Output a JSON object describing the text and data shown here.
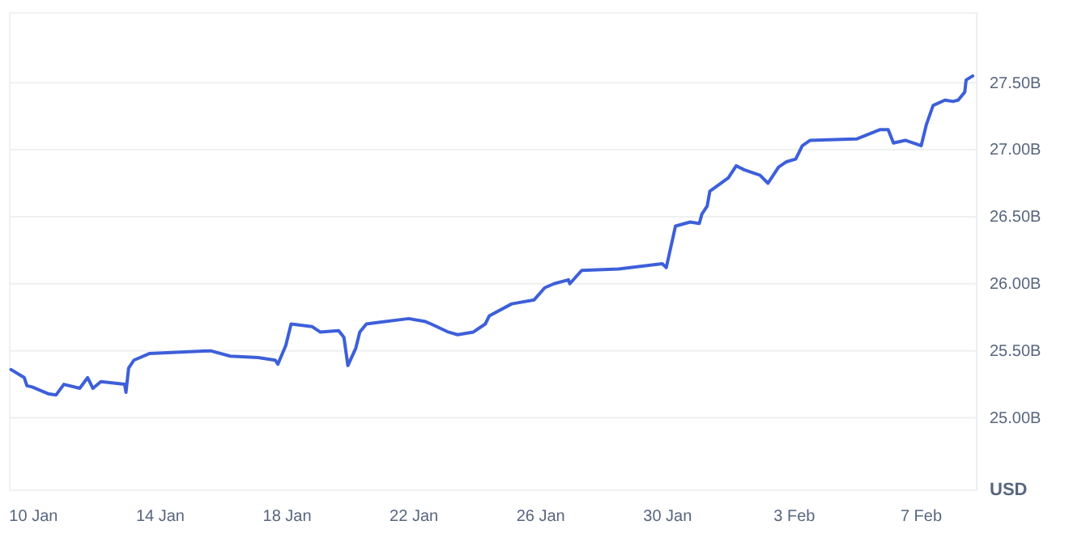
{
  "chart_data": {
    "type": "line",
    "ylabel": "USD",
    "grid": "y",
    "tick_labels": "xy",
    "xlim": [
      "--01-09T06:00",
      "--02-08T18:00"
    ],
    "xticks": [
      {
        "value": "--01-10",
        "label": "10 Jan"
      },
      {
        "value": "--01-14",
        "label": "14 Jan"
      },
      {
        "value": "--01-18",
        "label": "18 Jan"
      },
      {
        "value": "--01-22",
        "label": "22 Jan"
      },
      {
        "value": "--01-26",
        "label": "26 Jan"
      },
      {
        "value": "--01-30",
        "label": "30 Jan"
      },
      {
        "value": "--02-03",
        "label": "3 Feb"
      },
      {
        "value": "--02-07",
        "label": "7 Feb"
      }
    ],
    "ylim": [
      24.46,
      28.02
    ],
    "yticks": [
      {
        "value": 25,
        "label": "25.00B"
      },
      {
        "value": 25.5,
        "label": "25.50B"
      },
      {
        "value": 26,
        "label": "26.00B"
      },
      {
        "value": 26.5,
        "label": "26.50B"
      },
      {
        "value": 27,
        "label": "27.00B"
      },
      {
        "value": 27.5,
        "label": "27.50B"
      }
    ],
    "series": [
      {
        "color": "#3d5fd9",
        "x": [
          "--01-09T07:00",
          "--01-09T17:00",
          "--01-09T19:00",
          "--01-09T23:00",
          "--01-10T11:00",
          "--01-10T17:00",
          "--01-10T23:00",
          "--01-11T11:00",
          "--01-11T17:00",
          "--01-11T21:00",
          "--01-12T03:00",
          "--01-12T21:00",
          "--01-12T22:00",
          "--01-13T00:00",
          "--01-13T04:00",
          "--01-13T16:00",
          "--01-15T14:00",
          "--01-16T05:00",
          "--01-17T02:00",
          "--01-17T15:00",
          "--01-17T17:00",
          "--01-17T23:00",
          "--01-18T03:00",
          "--01-18T19:00",
          "--01-19T01:00",
          "--01-19T15:00",
          "--01-19T19:00",
          "--01-19T22:00",
          "--01-20T04:00",
          "--01-20T07:00",
          "--01-20T12:00",
          "--01-20T20:00",
          "--01-21T20:00",
          "--01-22T08:00",
          "--01-22T13:00",
          "--01-23T02:00",
          "--01-23T09:00",
          "--01-23T21:00",
          "--01-24T06:00",
          "--01-24T09:00",
          "--01-25T02:00",
          "--01-25T19:00",
          "--01-26T03:00",
          "--01-26T10:00",
          "--01-26T21:00",
          "--01-26T22:00",
          "--01-27T07:00",
          "--01-28T11:00",
          "--01-29T20:00",
          "--01-29T23:00",
          "--01-30T06:00",
          "--01-30T17:00",
          "--01-31T00:00",
          "--01-31T02:00",
          "--01-31T06:00",
          "--01-31T08:00",
          "--01-31T22:00",
          "--02-01T04:00",
          "--02-01T10:00",
          "--02-01T22:00",
          "--02-02T04:00",
          "--02-02T12:00",
          "--02-02T18:00",
          "--02-03T01:00",
          "--02-03T06:00",
          "--02-03T12:00",
          "--02-04T23:00",
          "--02-05T17:00",
          "--02-05T23:00",
          "--02-06T03:00",
          "--02-06T12:00",
          "--02-07T00:00",
          "--02-07T04:00",
          "--02-07T09:00",
          "--02-07T18:00",
          "--02-08T00:00",
          "--02-08T04:00",
          "--02-08T09:00",
          "--02-08T10:00",
          "--02-08T15:00"
        ],
        "values": [
          25.36,
          25.3,
          25.24,
          25.23,
          25.18,
          25.17,
          25.25,
          25.22,
          25.3,
          25.22,
          25.27,
          25.25,
          25.19,
          25.37,
          25.43,
          25.48,
          25.5,
          25.46,
          25.45,
          25.43,
          25.4,
          25.54,
          25.7,
          25.68,
          25.64,
          25.65,
          25.6,
          25.39,
          25.52,
          25.64,
          25.7,
          25.71,
          25.74,
          25.72,
          25.7,
          25.64,
          25.62,
          25.64,
          25.7,
          25.76,
          25.85,
          25.88,
          25.97,
          26.0,
          26.03,
          26.0,
          26.1,
          26.11,
          26.15,
          26.12,
          26.43,
          26.46,
          26.45,
          26.52,
          26.58,
          26.69,
          26.79,
          26.88,
          26.85,
          26.81,
          26.75,
          26.87,
          26.91,
          26.93,
          27.03,
          27.07,
          27.08,
          27.15,
          27.15,
          27.05,
          27.07,
          27.03,
          27.19,
          27.33,
          27.37,
          27.36,
          27.37,
          27.43,
          27.52,
          27.55
        ]
      }
    ]
  }
}
